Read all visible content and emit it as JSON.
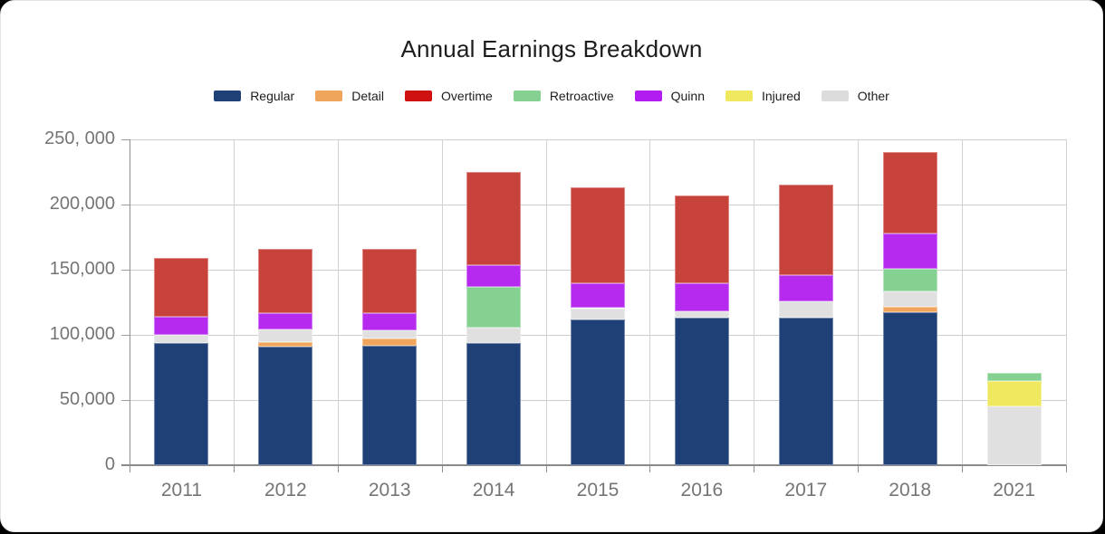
{
  "page": {
    "background": "#000000"
  },
  "card": {
    "background": "#ffffff",
    "border_color": "#e4e4e4"
  },
  "chart": {
    "title": "Annual Earnings Breakdown"
  },
  "chart_data": {
    "type": "bar",
    "stacked": true,
    "title": "Annual Earnings Breakdown",
    "categories": [
      "2011",
      "2012",
      "2013",
      "2014",
      "2015",
      "2016",
      "2017",
      "2018",
      "2021"
    ],
    "series": [
      {
        "name": "Regular",
        "color": "#1e4076",
        "values": [
          94000,
          91000,
          92000,
          94000,
          111500,
          113000,
          113000,
          117500,
          0
        ]
      },
      {
        "name": "Detail",
        "color": "#f0a55c",
        "values": [
          0,
          3500,
          5000,
          0,
          0,
          0,
          0,
          4000,
          0
        ]
      },
      {
        "name": "Overtime",
        "color": "#c7423a",
        "legend_color": "#d01111",
        "values": [
          45000,
          49000,
          49500,
          71500,
          74000,
          67500,
          70000,
          62500,
          0
        ]
      },
      {
        "name": "Retroactive",
        "color": "#85d192",
        "values": [
          0,
          0,
          0,
          31500,
          0,
          0,
          0,
          17000,
          6500
        ]
      },
      {
        "name": "Quinn",
        "color": "#b62af0",
        "legend_color": "#b31cf0",
        "values": [
          14000,
          12500,
          13000,
          16500,
          19000,
          21500,
          19500,
          27000,
          0
        ]
      },
      {
        "name": "Injured",
        "color": "#f0e85e",
        "values": [
          0,
          0,
          0,
          0,
          0,
          0,
          0,
          0,
          19500
        ]
      },
      {
        "name": "Other",
        "color": "#e0e0e0",
        "legend_color": "#dcdcdc",
        "values": [
          6000,
          10000,
          6500,
          11500,
          9000,
          5000,
          13000,
          12000,
          45000
        ]
      }
    ],
    "stack_order": [
      "Regular",
      "Detail",
      "Other",
      "Injured",
      "Retroactive",
      "Quinn",
      "Overtime"
    ],
    "totals": [
      159000,
      166000,
      166000,
      225000,
      213500,
      207000,
      215500,
      240000,
      71000
    ],
    "y_tick_labels": [
      "250, 000",
      "200,000",
      "150,000",
      "100,000",
      "50,000",
      "0"
    ],
    "y_tick_values": [
      250000,
      200000,
      150000,
      100000,
      50000,
      0
    ],
    "ylim": [
      0,
      250000
    ],
    "xlabel": "",
    "ylabel": "",
    "legend_position": "top",
    "grid": true
  },
  "style": {
    "grid_color": "#cdcdcd",
    "axis_color": "#8a8a8a",
    "tick_label_color": "#757575",
    "title_color": "#1d1d1d",
    "legend_label_color": "#1d1d1d"
  }
}
